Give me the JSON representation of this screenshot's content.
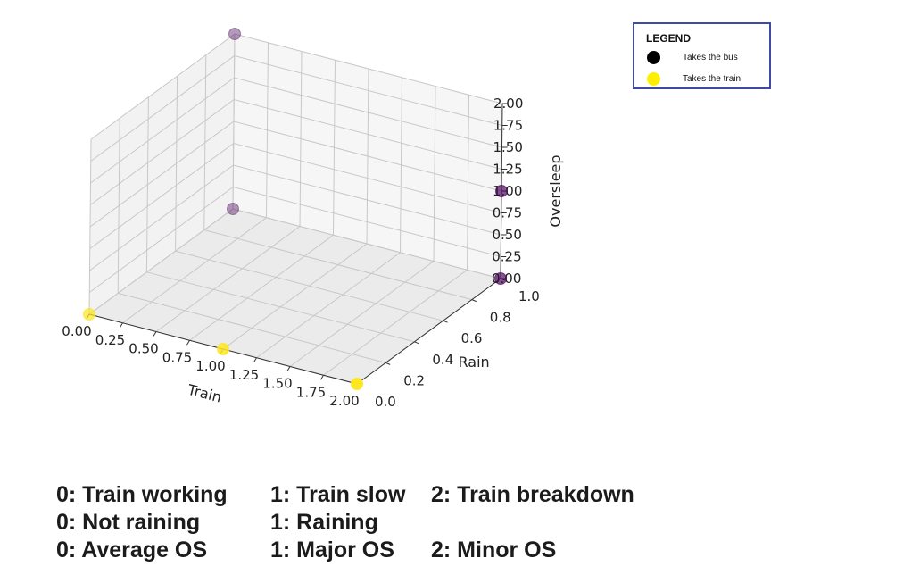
{
  "chart_data": {
    "type": "scatter",
    "projection": "3d",
    "xlabel": "Train",
    "ylabel": "Rain",
    "zlabel": "Oversleep",
    "xlim": [
      0,
      2
    ],
    "ylim": [
      0,
      1
    ],
    "zlim": [
      0,
      2
    ],
    "xticks": [
      "0.00",
      "0.25",
      "0.50",
      "0.75",
      "1.00",
      "1.25",
      "1.50",
      "1.75",
      "2.00"
    ],
    "yticks": [
      "0.0",
      "0.2",
      "0.4",
      "0.6",
      "0.8",
      "1.0"
    ],
    "zticks": [
      "0.00",
      "0.25",
      "0.50",
      "0.75",
      "1.00",
      "1.25",
      "1.50",
      "1.75",
      "2.00"
    ],
    "grid": true,
    "points": [
      {
        "x": 0,
        "y": 0,
        "z": 0,
        "class": "train"
      },
      {
        "x": 1,
        "y": 0,
        "z": 0,
        "class": "train"
      },
      {
        "x": 2,
        "y": 0,
        "z": 0,
        "class": "train"
      },
      {
        "x": 0,
        "y": 1,
        "z": 0,
        "class": "bus"
      },
      {
        "x": 2,
        "y": 1,
        "z": 0,
        "class": "bus"
      },
      {
        "x": 0,
        "y": 1,
        "z": 2,
        "class": "bus"
      },
      {
        "x": 2,
        "y": 1,
        "z": 1,
        "class": "bus"
      }
    ],
    "colors": {
      "bus": "#440154",
      "train": "#fde725"
    }
  },
  "legend": {
    "title": "LEGEND",
    "items": [
      {
        "label": "Takes the bus",
        "color": "#000000"
      },
      {
        "label": "Takes the train",
        "color": "#ffee00"
      }
    ]
  },
  "notes": [
    [
      "0: Train working",
      "1: Train slow",
      "2: Train breakdown"
    ],
    [
      "0: Not raining",
      "1: Raining",
      ""
    ],
    [
      "0: Average OS",
      "1: Major OS",
      "2: Minor OS"
    ]
  ]
}
